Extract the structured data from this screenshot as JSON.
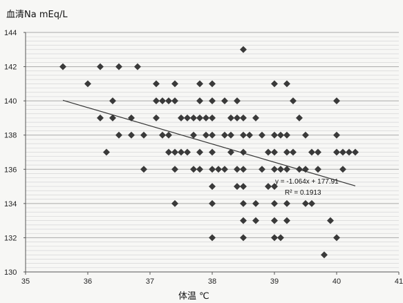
{
  "chart_data": {
    "type": "scatter",
    "ylabel": "血清Na mEq/L",
    "xlabel": "体温 ℃",
    "xlim": [
      35,
      41
    ],
    "ylim": [
      130,
      144
    ],
    "x_ticks": [
      "35",
      "36",
      "37",
      "38",
      "39",
      "40",
      "41"
    ],
    "y_ticks": [
      "130",
      "132",
      "134",
      "136",
      "138",
      "140",
      "142",
      "144"
    ],
    "grid": "horizontal",
    "legend": "none",
    "marker": "diamond",
    "colors": {
      "points": "#3a3a3a",
      "trendline": "#333333",
      "grid": "#bdbdbd",
      "axis": "#555555"
    },
    "trendline": {
      "slope": -1.064,
      "intercept": 177.91,
      "equation": "y = -1.064x + 177.91",
      "r2": "R² = 0.1913",
      "x_range": [
        35.6,
        40.3
      ]
    },
    "points": [
      [
        35.6,
        142
      ],
      [
        36.0,
        141
      ],
      [
        36.2,
        142
      ],
      [
        36.5,
        142
      ],
      [
        36.8,
        142
      ],
      [
        36.2,
        139
      ],
      [
        36.4,
        140
      ],
      [
        36.4,
        139
      ],
      [
        36.5,
        138
      ],
      [
        36.3,
        137
      ],
      [
        36.7,
        139
      ],
      [
        36.7,
        138
      ],
      [
        36.9,
        138
      ],
      [
        36.9,
        136
      ],
      [
        37.1,
        141
      ],
      [
        37.1,
        140
      ],
      [
        37.1,
        139
      ],
      [
        37.2,
        140
      ],
      [
        37.3,
        140
      ],
      [
        37.2,
        138
      ],
      [
        37.3,
        138
      ],
      [
        37.3,
        137
      ],
      [
        37.4,
        137
      ],
      [
        37.4,
        141
      ],
      [
        37.4,
        140
      ],
      [
        37.4,
        136
      ],
      [
        37.4,
        134
      ],
      [
        37.5,
        137
      ],
      [
        37.5,
        139
      ],
      [
        37.6,
        139
      ],
      [
        37.6,
        137
      ],
      [
        37.7,
        139
      ],
      [
        37.7,
        138
      ],
      [
        37.7,
        136
      ],
      [
        37.8,
        141
      ],
      [
        37.8,
        140
      ],
      [
        37.8,
        139
      ],
      [
        37.8,
        137
      ],
      [
        37.8,
        136
      ],
      [
        37.9,
        139
      ],
      [
        37.9,
        138
      ],
      [
        38.0,
        141
      ],
      [
        38.0,
        140
      ],
      [
        38.0,
        139
      ],
      [
        38.0,
        138
      ],
      [
        38.0,
        137
      ],
      [
        38.0,
        136
      ],
      [
        38.0,
        135
      ],
      [
        38.0,
        134
      ],
      [
        38.0,
        132
      ],
      [
        38.1,
        136
      ],
      [
        38.2,
        140
      ],
      [
        38.2,
        138
      ],
      [
        38.2,
        136
      ],
      [
        38.3,
        139
      ],
      [
        38.3,
        138
      ],
      [
        38.3,
        137
      ],
      [
        38.4,
        140
      ],
      [
        38.4,
        139
      ],
      [
        38.4,
        136
      ],
      [
        38.4,
        135
      ],
      [
        38.5,
        143
      ],
      [
        38.5,
        139
      ],
      [
        38.5,
        138
      ],
      [
        38.5,
        137
      ],
      [
        38.5,
        136
      ],
      [
        38.5,
        135
      ],
      [
        38.5,
        134
      ],
      [
        38.5,
        133
      ],
      [
        38.5,
        132
      ],
      [
        38.6,
        138
      ],
      [
        38.7,
        139
      ],
      [
        38.7,
        134
      ],
      [
        38.7,
        133
      ],
      [
        38.8,
        138
      ],
      [
        38.8,
        136
      ],
      [
        38.9,
        137
      ],
      [
        38.9,
        135
      ],
      [
        39.0,
        141
      ],
      [
        39.0,
        138
      ],
      [
        39.0,
        137
      ],
      [
        39.0,
        136
      ],
      [
        39.0,
        135
      ],
      [
        39.0,
        134
      ],
      [
        39.0,
        133
      ],
      [
        39.0,
        132
      ],
      [
        39.1,
        138
      ],
      [
        39.1,
        136
      ],
      [
        39.1,
        132
      ],
      [
        39.2,
        141
      ],
      [
        39.2,
        138
      ],
      [
        39.2,
        137
      ],
      [
        39.2,
        136
      ],
      [
        39.2,
        134
      ],
      [
        39.2,
        133
      ],
      [
        39.3,
        140
      ],
      [
        39.3,
        137
      ],
      [
        39.4,
        139
      ],
      [
        39.4,
        136
      ],
      [
        39.5,
        138
      ],
      [
        39.5,
        136
      ],
      [
        39.5,
        134
      ],
      [
        39.6,
        137
      ],
      [
        39.6,
        134
      ],
      [
        39.7,
        137
      ],
      [
        39.7,
        136
      ],
      [
        39.8,
        131
      ],
      [
        39.9,
        133
      ],
      [
        40.0,
        140
      ],
      [
        40.0,
        138
      ],
      [
        40.0,
        137
      ],
      [
        40.0,
        132
      ],
      [
        40.1,
        136
      ],
      [
        40.1,
        137
      ],
      [
        40.2,
        137
      ],
      [
        40.3,
        137
      ]
    ]
  }
}
